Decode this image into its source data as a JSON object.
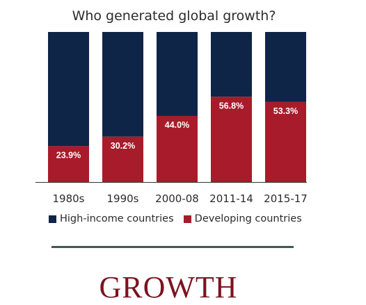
{
  "chart_data": {
    "type": "bar",
    "stacked": true,
    "title": "Who generated global growth?",
    "categories": [
      "1980s",
      "1990s",
      "2000-08",
      "2011-14",
      "2015-17"
    ],
    "ylim": [
      0,
      100
    ],
    "series": [
      {
        "name": "Developing countries",
        "color": "#a81b2a",
        "values": [
          23.9,
          30.2,
          44.0,
          56.8,
          53.3
        ],
        "labels": [
          "23.9%",
          "30.2%",
          "44.0%",
          "56.8%",
          "53.3%"
        ]
      },
      {
        "name": "High-income countries",
        "color": "#0e2547",
        "values": [
          76.1,
          69.8,
          56.0,
          43.2,
          46.7
        ]
      }
    ],
    "legend": {
      "position": "bottom",
      "items": [
        {
          "label": "High-income countries",
          "color": "#0e2547"
        },
        {
          "label": "Developing countries",
          "color": "#a81b2a"
        }
      ]
    },
    "grid": false
  },
  "footer": {
    "heading": "GROWTH",
    "heading_color": "#7a1520",
    "divider_color": "#3e5a56"
  }
}
